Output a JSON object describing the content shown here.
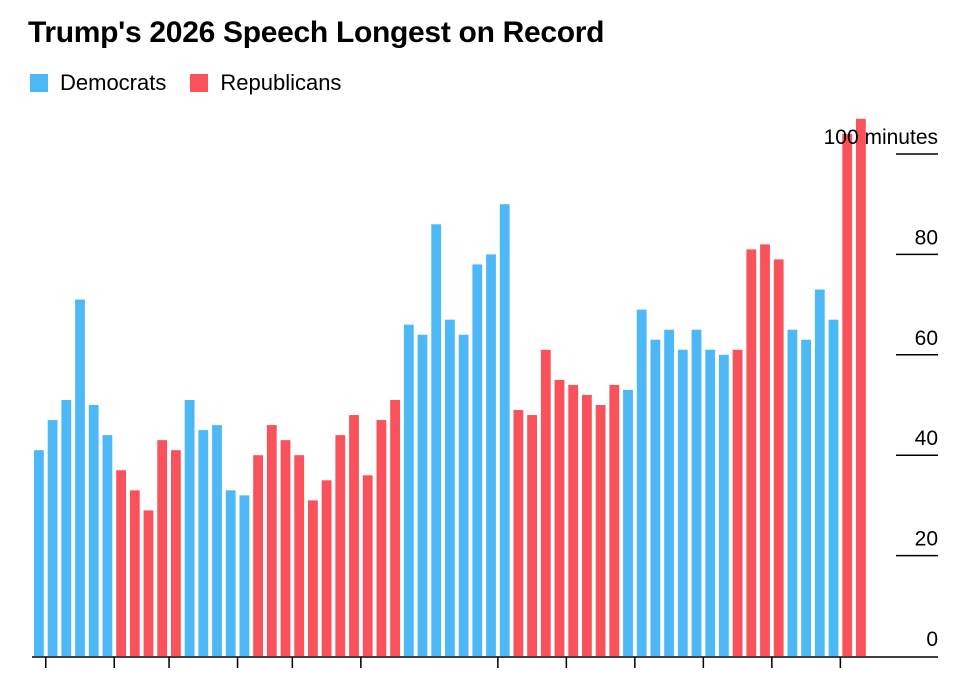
{
  "title": "Trump's 2026 Speech Longest on Record",
  "legend": [
    {
      "label": "Democrats",
      "color": "#4cb8f5"
    },
    {
      "label": "Republicans",
      "color": "#f9525a"
    }
  ],
  "chart_data": {
    "type": "bar",
    "title": "Trump's 2026 Speech Longest on Record",
    "xlabel": "",
    "ylabel": "minutes",
    "ylim": [
      0,
      100
    ],
    "y_ticks": [
      {
        "value": 0,
        "label": "0"
      },
      {
        "value": 20,
        "label": "20"
      },
      {
        "value": 40,
        "label": "40"
      },
      {
        "value": 60,
        "label": "60"
      },
      {
        "value": 80,
        "label": "80"
      },
      {
        "value": 100,
        "label": "100 minutes"
      }
    ],
    "x_tick_after_bars": [
      1,
      6,
      10,
      15,
      19,
      24,
      34,
      39,
      44,
      49,
      54,
      59
    ],
    "series": [
      {
        "name": "Democrats",
        "color": "#4cb8f5"
      },
      {
        "name": "Republicans",
        "color": "#f9525a"
      }
    ],
    "bars": [
      {
        "party": "Democrats",
        "value": 41
      },
      {
        "party": "Democrats",
        "value": 47
      },
      {
        "party": "Democrats",
        "value": 51
      },
      {
        "party": "Democrats",
        "value": 71
      },
      {
        "party": "Democrats",
        "value": 50
      },
      {
        "party": "Democrats",
        "value": 44
      },
      {
        "party": "Republicans",
        "value": 37
      },
      {
        "party": "Republicans",
        "value": 33
      },
      {
        "party": "Republicans",
        "value": 29
      },
      {
        "party": "Republicans",
        "value": 43
      },
      {
        "party": "Republicans",
        "value": 41
      },
      {
        "party": "Democrats",
        "value": 51
      },
      {
        "party": "Democrats",
        "value": 45
      },
      {
        "party": "Democrats",
        "value": 46
      },
      {
        "party": "Democrats",
        "value": 33
      },
      {
        "party": "Democrats",
        "value": 32
      },
      {
        "party": "Republicans",
        "value": 40
      },
      {
        "party": "Republicans",
        "value": 46
      },
      {
        "party": "Republicans",
        "value": 43
      },
      {
        "party": "Republicans",
        "value": 40
      },
      {
        "party": "Republicans",
        "value": 31
      },
      {
        "party": "Republicans",
        "value": 35
      },
      {
        "party": "Republicans",
        "value": 44
      },
      {
        "party": "Republicans",
        "value": 48
      },
      {
        "party": "Republicans",
        "value": 36
      },
      {
        "party": "Republicans",
        "value": 47
      },
      {
        "party": "Republicans",
        "value": 51
      },
      {
        "party": "Democrats",
        "value": 66
      },
      {
        "party": "Democrats",
        "value": 64
      },
      {
        "party": "Democrats",
        "value": 86
      },
      {
        "party": "Democrats",
        "value": 67
      },
      {
        "party": "Democrats",
        "value": 64
      },
      {
        "party": "Democrats",
        "value": 78
      },
      {
        "party": "Democrats",
        "value": 80
      },
      {
        "party": "Democrats",
        "value": 90
      },
      {
        "party": "Republicans",
        "value": 49
      },
      {
        "party": "Republicans",
        "value": 48
      },
      {
        "party": "Republicans",
        "value": 61
      },
      {
        "party": "Republicans",
        "value": 55
      },
      {
        "party": "Republicans",
        "value": 54
      },
      {
        "party": "Republicans",
        "value": 52
      },
      {
        "party": "Republicans",
        "value": 50
      },
      {
        "party": "Republicans",
        "value": 54
      },
      {
        "party": "Democrats",
        "value": 53
      },
      {
        "party": "Democrats",
        "value": 69
      },
      {
        "party": "Democrats",
        "value": 63
      },
      {
        "party": "Democrats",
        "value": 65
      },
      {
        "party": "Democrats",
        "value": 61
      },
      {
        "party": "Democrats",
        "value": 65
      },
      {
        "party": "Democrats",
        "value": 61
      },
      {
        "party": "Democrats",
        "value": 60
      },
      {
        "party": "Republicans",
        "value": 61
      },
      {
        "party": "Republicans",
        "value": 81
      },
      {
        "party": "Republicans",
        "value": 82
      },
      {
        "party": "Republicans",
        "value": 79
      },
      {
        "party": "Democrats",
        "value": 65
      },
      {
        "party": "Democrats",
        "value": 63
      },
      {
        "party": "Democrats",
        "value": 73
      },
      {
        "party": "Democrats",
        "value": 67
      },
      {
        "party": "Republicans",
        "value": 104
      },
      {
        "party": "Republicans",
        "value": 107
      }
    ]
  }
}
